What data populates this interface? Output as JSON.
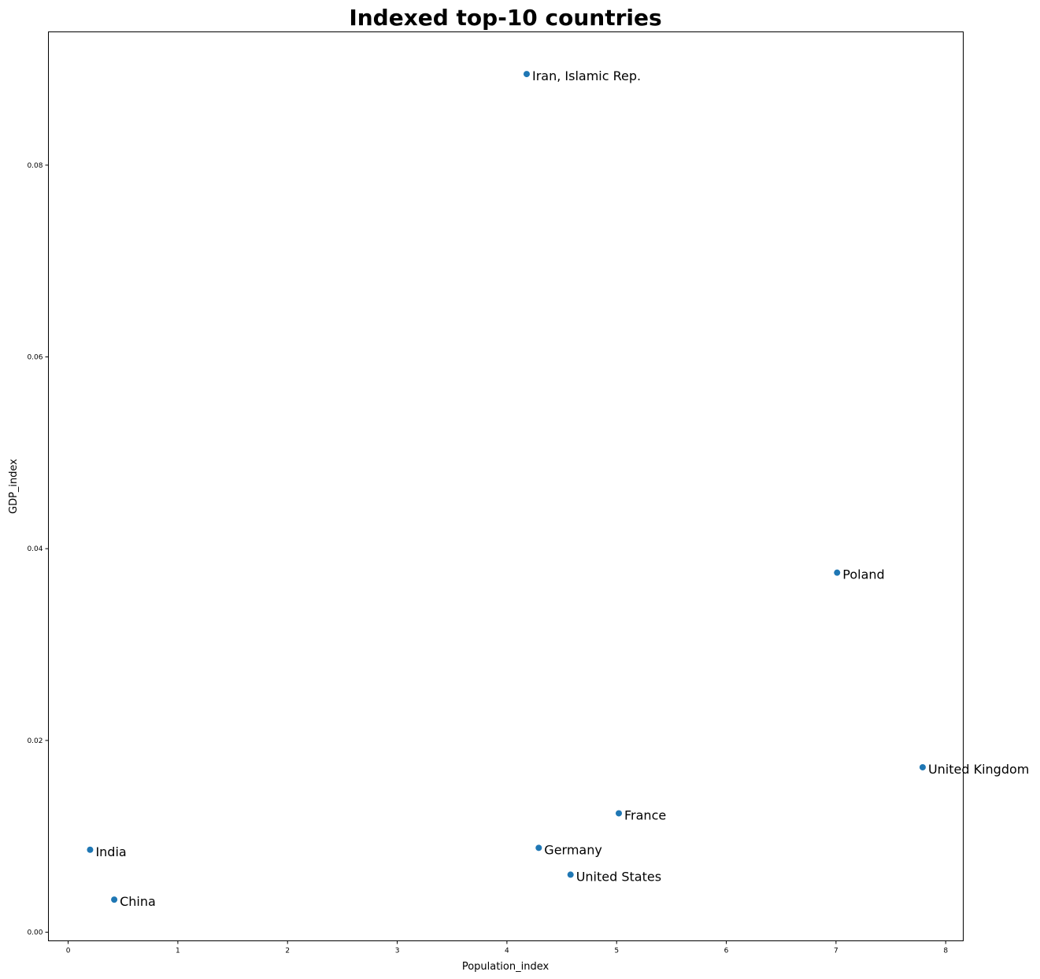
{
  "chart_data": {
    "type": "scatter",
    "title": "Indexed top-10 countries",
    "xlabel": "Population_index",
    "ylabel": "GDP_index",
    "xlim": [
      -0.18,
      8.16
    ],
    "ylim": [
      -0.0009,
      0.0939
    ],
    "x_ticks": [
      "0",
      "1",
      "2",
      "3",
      "4",
      "5",
      "6",
      "7",
      "8"
    ],
    "y_ticks": [
      "0.00",
      "0.02",
      "0.04",
      "0.06",
      "0.08"
    ],
    "grid": false,
    "point_color": "#1f77b4",
    "points": [
      {
        "label": "Iran, Islamic Rep.",
        "x": 4.18,
        "y": 0.0895
      },
      {
        "label": "Poland",
        "x": 7.01,
        "y": 0.0375
      },
      {
        "label": "United Kingdom",
        "x": 7.79,
        "y": 0.0172
      },
      {
        "label": "France",
        "x": 5.02,
        "y": 0.0124
      },
      {
        "label": "Germany",
        "x": 4.29,
        "y": 0.0088
      },
      {
        "label": "United States",
        "x": 4.58,
        "y": 0.006
      },
      {
        "label": "India",
        "x": 0.2,
        "y": 0.0086
      },
      {
        "label": "China",
        "x": 0.42,
        "y": 0.0034
      }
    ]
  }
}
